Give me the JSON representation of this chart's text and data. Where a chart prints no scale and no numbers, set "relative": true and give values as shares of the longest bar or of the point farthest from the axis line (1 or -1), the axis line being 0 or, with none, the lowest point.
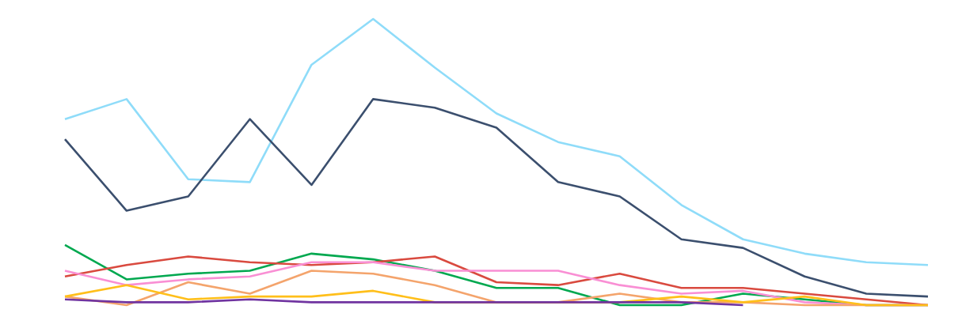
{
  "chart_data": {
    "type": "line",
    "relative": true,
    "marker": "none",
    "categories": [
      null,
      null,
      null,
      null,
      null,
      null,
      null,
      null,
      null,
      null,
      null,
      null,
      null,
      null,
      null
    ],
    "series": [
      {
        "color": "#8fdcf9",
        "values": [
          0.65,
          0.72,
          0.44,
          0.43,
          0.84,
          1.0,
          0.83,
          0.67,
          0.57,
          0.52,
          0.35,
          0.23,
          0.18,
          0.15,
          0.14
        ]
      },
      {
        "color": "#3b4f6e",
        "values": [
          0.58,
          0.33,
          0.38,
          0.65,
          0.42,
          0.72,
          0.69,
          0.62,
          0.43,
          0.38,
          0.23,
          0.2,
          0.1,
          0.04,
          0.03
        ]
      },
      {
        "color": "#00a84f",
        "values": [
          0.21,
          0.09,
          0.11,
          0.12,
          0.18,
          0.16,
          0.12,
          0.06,
          0.06,
          0,
          0,
          0.04,
          0.02,
          0,
          0
        ]
      },
      {
        "color": "#d94a3f",
        "values": [
          0.1,
          0.14,
          0.17,
          0.15,
          0.14,
          0.15,
          0.17,
          0.08,
          0.07,
          0.11,
          0.06,
          0.06,
          0.04,
          0.02,
          0
        ]
      },
      {
        "color": "#f98fd4",
        "values": [
          0.12,
          0.07,
          0.09,
          0.1,
          0.15,
          0.15,
          0.12,
          0.12,
          0.12,
          0.07,
          0.04,
          0.05,
          0.01,
          0,
          0
        ]
      },
      {
        "color": "#f4a46c",
        "values": [
          0.03,
          0,
          0.08,
          0.04,
          0.12,
          0.11,
          0.07,
          0.01,
          0.01,
          0.04,
          0.01,
          0.01,
          0,
          0,
          0
        ]
      },
      {
        "color": "#ffbf1a",
        "values": [
          0.03,
          0.07,
          0.02,
          0.03,
          0.03,
          0.05,
          0.01,
          0.01,
          0.01,
          0.01,
          0.03,
          0.01,
          0.03,
          0,
          0
        ]
      },
      {
        "color": "#7034a0",
        "values": [
          0.02,
          0.01,
          0.01,
          0.02,
          0.01,
          0.01,
          0.01,
          0.01,
          0.01,
          0.01,
          0.01,
          0,
          null,
          null,
          null
        ]
      }
    ]
  }
}
